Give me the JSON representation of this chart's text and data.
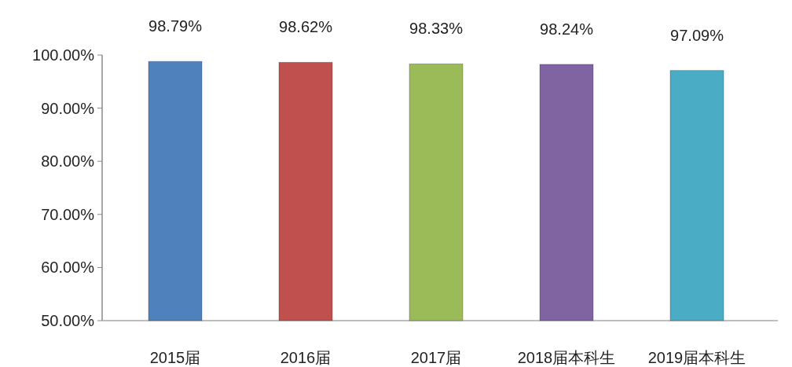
{
  "chart_data": {
    "type": "bar",
    "categories": [
      "2015届",
      "2016届",
      "2017届",
      "2018届本科生",
      "2019届本科生"
    ],
    "values": [
      98.79,
      98.62,
      98.33,
      98.24,
      97.09
    ],
    "colors": [
      "#4f81bd",
      "#c0504d",
      "#9bbb59",
      "#8064a2",
      "#4bacc6"
    ],
    "value_labels": [
      "98.79%",
      "98.62%",
      "98.33%",
      "98.24%",
      "97.09%"
    ],
    "ylim": [
      50,
      100
    ],
    "yticks": [
      {
        "value": 50,
        "label": "50.00%"
      },
      {
        "value": 60,
        "label": "60.00%"
      },
      {
        "value": 70,
        "label": "70.00%"
      },
      {
        "value": 80,
        "label": "80.00%"
      },
      {
        "value": 90,
        "label": "90.00%"
      },
      {
        "value": 100,
        "label": "100.00%"
      }
    ],
    "grid": false
  }
}
